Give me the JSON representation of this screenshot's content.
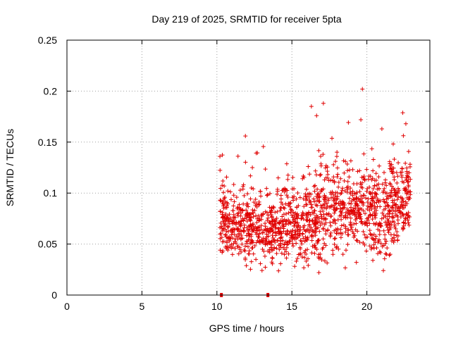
{
  "chart_data": {
    "type": "scatter",
    "title": "Day 219 of 2025, SRMTID for receiver 5pta",
    "xlabel": "GPS time / hours",
    "ylabel": "SRMTID / TECUs",
    "xlim": [
      0,
      24.2
    ],
    "ylim": [
      0,
      0.25
    ],
    "xticks": [
      0,
      5,
      10,
      15,
      20
    ],
    "yticks": [
      0,
      0.05,
      0.1,
      0.15,
      0.2,
      0.25
    ],
    "xtick_labels": [
      "0",
      "5",
      "10",
      "15",
      "20"
    ],
    "ytick_labels": [
      "0",
      "0.05",
      "0.1",
      "0.15",
      "0.2",
      "0.25"
    ],
    "grid": true,
    "marker": "plus",
    "colors": {
      "series": "#e00000",
      "axes": "#000000",
      "grid": "#a0a0a0"
    },
    "series": [
      {
        "name": "SRMTID",
        "x_range_hours": [
          10.2,
          22.9
        ],
        "point_count": 1500,
        "note": "dense scatter; values mostly between 0.02 and 0.20 TECU, base level rising after ~15 h",
        "envelope": [
          {
            "x": 10.2,
            "median": 0.075,
            "spread": 0.025
          },
          {
            "x": 11.0,
            "median": 0.07,
            "spread": 0.025
          },
          {
            "x": 12.0,
            "median": 0.07,
            "spread": 0.03
          },
          {
            "x": 13.0,
            "median": 0.062,
            "spread": 0.025
          },
          {
            "x": 14.0,
            "median": 0.065,
            "spread": 0.028
          },
          {
            "x": 15.0,
            "median": 0.068,
            "spread": 0.028
          },
          {
            "x": 16.0,
            "median": 0.07,
            "spread": 0.035
          },
          {
            "x": 17.0,
            "median": 0.08,
            "spread": 0.035
          },
          {
            "x": 18.0,
            "median": 0.085,
            "spread": 0.035
          },
          {
            "x": 19.0,
            "median": 0.085,
            "spread": 0.035
          },
          {
            "x": 20.0,
            "median": 0.085,
            "spread": 0.035
          },
          {
            "x": 21.0,
            "median": 0.08,
            "spread": 0.035
          },
          {
            "x": 22.0,
            "median": 0.09,
            "spread": 0.035
          },
          {
            "x": 22.9,
            "median": 0.1,
            "spread": 0.035
          }
        ],
        "highlights": [
          {
            "x": 10.2,
            "y": 0.136
          },
          {
            "x": 11.9,
            "y": 0.156
          },
          {
            "x": 16.3,
            "y": 0.185
          },
          {
            "x": 17.1,
            "y": 0.188
          },
          {
            "x": 19.7,
            "y": 0.202
          },
          {
            "x": 19.6,
            "y": 0.172
          },
          {
            "x": 21.0,
            "y": 0.163
          },
          {
            "x": 22.6,
            "y": 0.168
          },
          {
            "x": 12.6,
            "y": 0.035
          },
          {
            "x": 16.8,
            "y": 0.022
          },
          {
            "x": 19.3,
            "y": 0.032
          },
          {
            "x": 21.1,
            "y": 0.024
          }
        ],
        "zero_markers": [
          10.3,
          13.4
        ]
      }
    ]
  }
}
